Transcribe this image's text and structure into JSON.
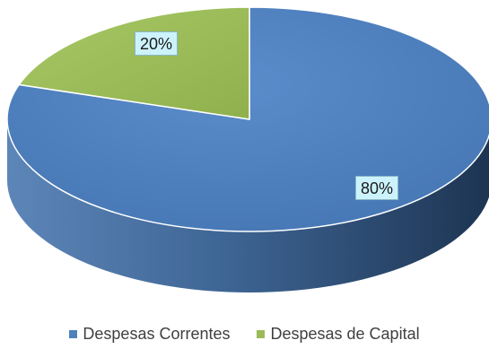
{
  "chart_data": {
    "type": "pie",
    "style": "3d",
    "categories": [
      "Despesas Correntes",
      "Despesas de Capital"
    ],
    "values": [
      80,
      20
    ],
    "data_labels": [
      "80%",
      "20%"
    ],
    "title": "",
    "legend_position": "bottom",
    "colors": [
      "#4f81bd",
      "#9bbb59"
    ]
  }
}
